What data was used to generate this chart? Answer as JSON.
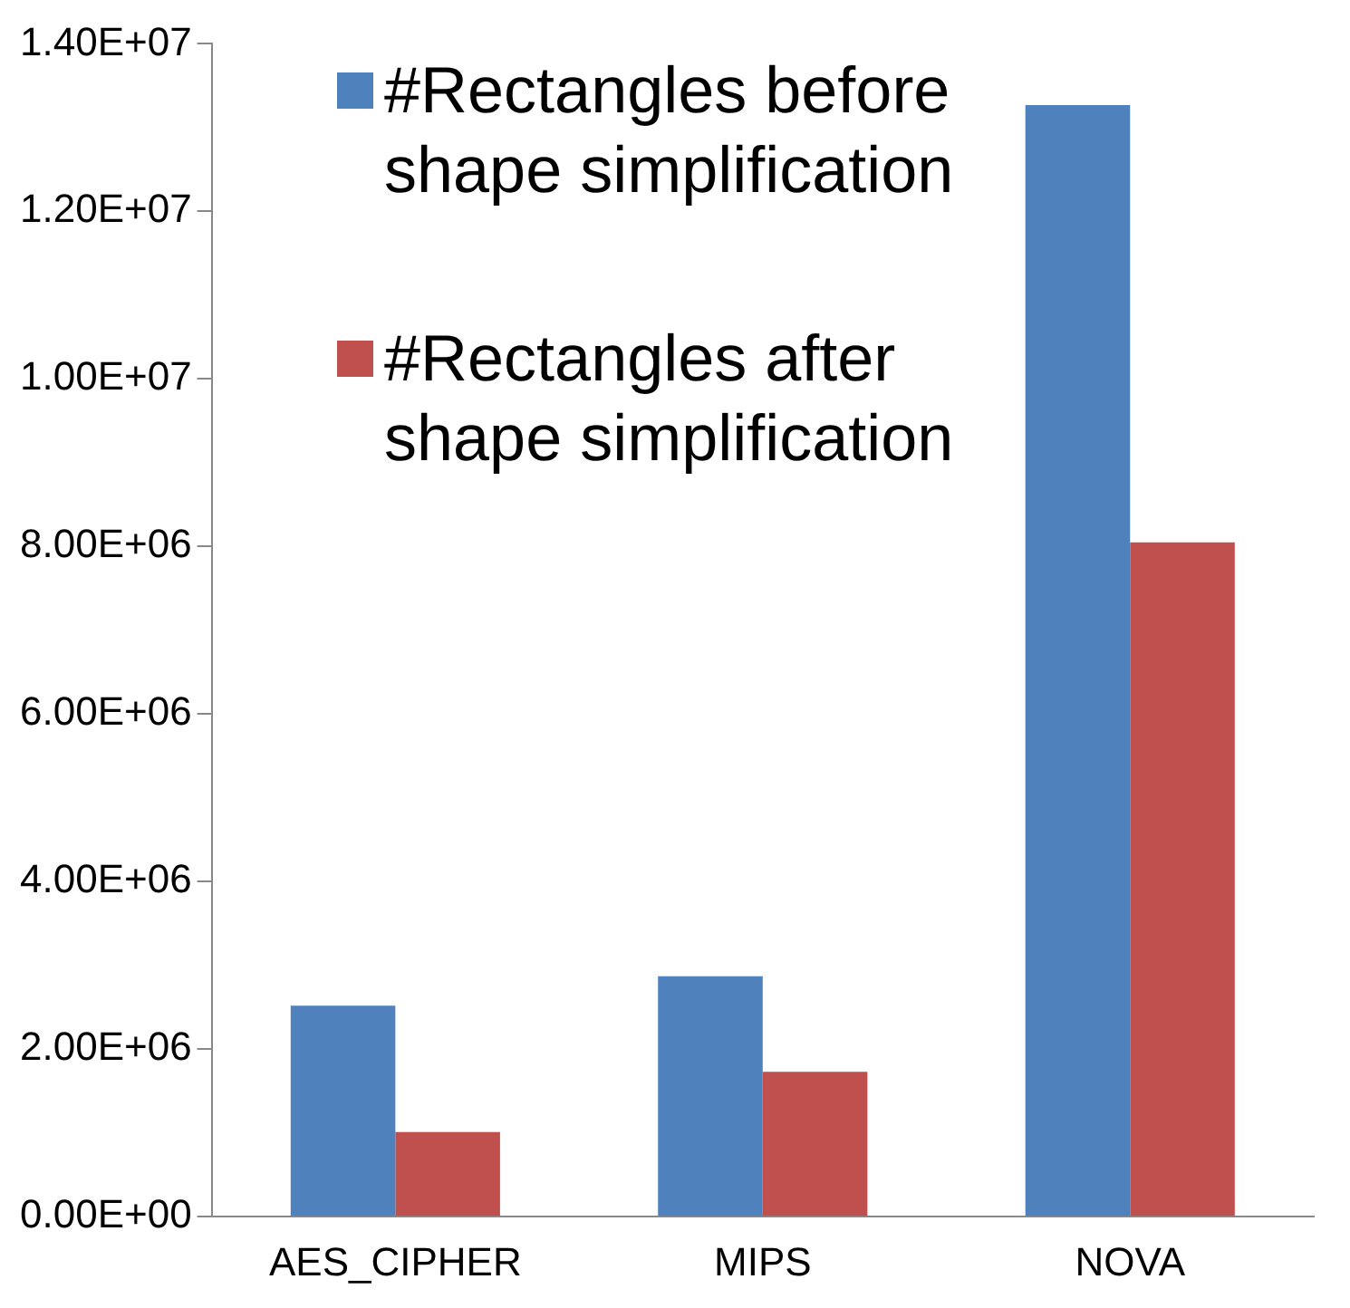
{
  "chart_data": {
    "type": "bar",
    "categories": [
      "AES_CIPHER",
      "MIPS",
      "NOVA"
    ],
    "series": [
      {
        "name": "#Rectangles before shape simplification",
        "color": "#4f81bd",
        "values": [
          2520000,
          2870000,
          13270000
        ]
      },
      {
        "name": "#Rectangles after shape simplification",
        "color": "#c0504d",
        "values": [
          1010000,
          1730000,
          8050000
        ]
      }
    ],
    "ylim": [
      0,
      14000000
    ],
    "yticks": [
      {
        "value": 0,
        "label": "0.00E+00"
      },
      {
        "value": 2000000,
        "label": "2.00E+06"
      },
      {
        "value": 4000000,
        "label": "4.00E+06"
      },
      {
        "value": 6000000,
        "label": "6.00E+06"
      },
      {
        "value": 8000000,
        "label": "8.00E+06"
      },
      {
        "value": 10000000,
        "label": "1.00E+07"
      },
      {
        "value": 12000000,
        "label": "1.20E+07"
      },
      {
        "value": 14000000,
        "label": "1.40E+07"
      }
    ],
    "grid": false,
    "legend": "top left"
  }
}
